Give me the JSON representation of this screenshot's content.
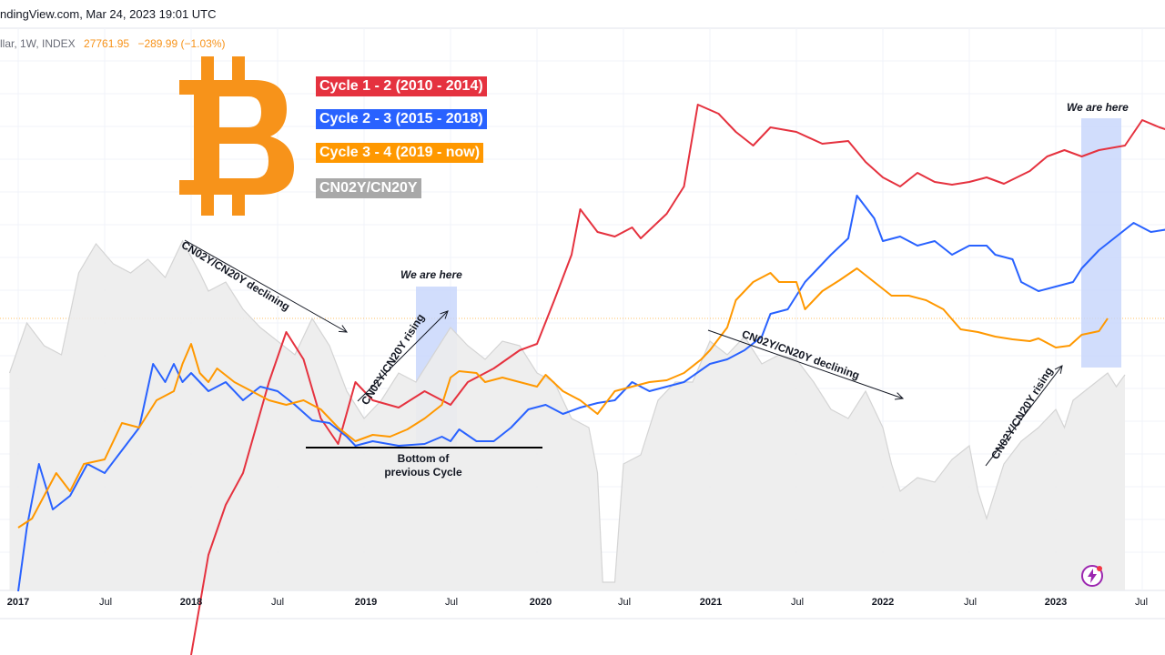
{
  "header": {
    "source": "ndingView.com, Mar 24, 2023 19:01 UTC",
    "symbol": "llar, 1W, INDEX",
    "price": "27761.95",
    "change": "−289.99 (−1.03%)"
  },
  "icons": {
    "logo": "bitcoin-logo-icon",
    "bolt": "lightning-bolt-icon"
  },
  "colors": {
    "cycle1": "#e5323f",
    "cycle2": "#2962ff",
    "cycle3": "#ff9800",
    "yield": "#9e9e9e",
    "bitcoin": "#f7931a",
    "highlight": "#c5d4fb"
  },
  "chart_data": {
    "type": "line",
    "title": "",
    "x": [
      "2017",
      "Jul",
      "2018",
      "Jul",
      "2019",
      "Jul",
      "2020",
      "Jul",
      "2021",
      "Jul",
      "2022",
      "Jul",
      "2023",
      "Jul"
    ],
    "legend": [
      "Cycle 1 - 2 (2010 - 2014)",
      "Cycle 2 - 3 (2015 - 2018)",
      "Cycle 3 - 4 (2019 - now)",
      "CN02Y/CN20Y"
    ],
    "series": [
      {
        "name": "Cycle 1 - 2 (2010 - 2014)",
        "color": "#e5323f",
        "points": [
          [
            2018.0,
            720
          ],
          [
            2018.1,
            610
          ],
          [
            2018.2,
            555
          ],
          [
            2018.3,
            520
          ],
          [
            2018.45,
            420
          ],
          [
            2018.55,
            365
          ],
          [
            2018.65,
            395
          ],
          [
            2018.75,
            460
          ],
          [
            2018.85,
            488
          ],
          [
            2018.95,
            420
          ],
          [
            2019.05,
            440
          ],
          [
            2019.2,
            448
          ],
          [
            2019.35,
            430
          ],
          [
            2019.5,
            445
          ],
          [
            2019.6,
            420
          ],
          [
            2019.75,
            405
          ],
          [
            2019.9,
            385
          ],
          [
            2020.0,
            378
          ],
          [
            2020.1,
            330
          ],
          [
            2020.2,
            280
          ],
          [
            2020.25,
            230
          ],
          [
            2020.35,
            255
          ],
          [
            2020.45,
            260
          ],
          [
            2020.55,
            250
          ],
          [
            2020.6,
            262
          ],
          [
            2020.75,
            235
          ],
          [
            2020.85,
            205
          ],
          [
            2020.93,
            115
          ],
          [
            2021.05,
            125
          ],
          [
            2021.15,
            145
          ],
          [
            2021.25,
            160
          ],
          [
            2021.35,
            140
          ],
          [
            2021.5,
            145
          ],
          [
            2021.65,
            158
          ],
          [
            2021.8,
            155
          ],
          [
            2021.9,
            178
          ],
          [
            2022.0,
            195
          ],
          [
            2022.1,
            205
          ],
          [
            2022.2,
            190
          ],
          [
            2022.3,
            200
          ],
          [
            2022.4,
            203
          ],
          [
            2022.5,
            200
          ],
          [
            2022.6,
            195
          ],
          [
            2022.7,
            202
          ],
          [
            2022.85,
            188
          ],
          [
            2022.95,
            172
          ],
          [
            2023.05,
            165
          ],
          [
            2023.15,
            172
          ],
          [
            2023.25,
            165
          ],
          [
            2023.4,
            160
          ],
          [
            2023.5,
            132
          ],
          [
            2023.6,
            140
          ],
          [
            2023.65,
            143
          ]
        ]
      },
      {
        "name": "Cycle 2 - 3 (2015 - 2018)",
        "color": "#2962ff",
        "points": [
          [
            2017.0,
            650
          ],
          [
            2017.05,
            580
          ],
          [
            2017.12,
            510
          ],
          [
            2017.2,
            560
          ],
          [
            2017.3,
            545
          ],
          [
            2017.4,
            510
          ],
          [
            2017.5,
            520
          ],
          [
            2017.6,
            495
          ],
          [
            2017.7,
            470
          ],
          [
            2017.78,
            400
          ],
          [
            2017.85,
            420
          ],
          [
            2017.9,
            400
          ],
          [
            2017.95,
            420
          ],
          [
            2018.0,
            410
          ],
          [
            2018.1,
            430
          ],
          [
            2018.2,
            420
          ],
          [
            2018.3,
            440
          ],
          [
            2018.4,
            425
          ],
          [
            2018.5,
            430
          ],
          [
            2018.6,
            445
          ],
          [
            2018.7,
            462
          ],
          [
            2018.8,
            465
          ],
          [
            2018.9,
            480
          ],
          [
            2018.95,
            490
          ],
          [
            2019.05,
            485
          ],
          [
            2019.2,
            490
          ],
          [
            2019.35,
            488
          ],
          [
            2019.45,
            480
          ],
          [
            2019.5,
            485
          ],
          [
            2019.55,
            472
          ],
          [
            2019.65,
            485
          ],
          [
            2019.75,
            485
          ],
          [
            2019.85,
            470
          ],
          [
            2019.95,
            450
          ],
          [
            2020.05,
            445
          ],
          [
            2020.15,
            455
          ],
          [
            2020.25,
            448
          ],
          [
            2020.35,
            443
          ],
          [
            2020.45,
            440
          ],
          [
            2020.55,
            420
          ],
          [
            2020.65,
            430
          ],
          [
            2020.75,
            425
          ],
          [
            2020.85,
            420
          ],
          [
            2021.0,
            400
          ],
          [
            2021.1,
            395
          ],
          [
            2021.2,
            385
          ],
          [
            2021.3,
            370
          ],
          [
            2021.35,
            345
          ],
          [
            2021.45,
            340
          ],
          [
            2021.5,
            325
          ],
          [
            2021.55,
            310
          ],
          [
            2021.6,
            300
          ],
          [
            2021.7,
            280
          ],
          [
            2021.8,
            262
          ],
          [
            2021.85,
            215
          ],
          [
            2021.95,
            240
          ],
          [
            2022.0,
            265
          ],
          [
            2022.1,
            260
          ],
          [
            2022.2,
            270
          ],
          [
            2022.3,
            265
          ],
          [
            2022.4,
            280
          ],
          [
            2022.5,
            270
          ],
          [
            2022.6,
            270
          ],
          [
            2022.65,
            280
          ],
          [
            2022.75,
            285
          ],
          [
            2022.8,
            310
          ],
          [
            2022.9,
            320
          ],
          [
            2023.0,
            315
          ],
          [
            2023.1,
            310
          ],
          [
            2023.15,
            295
          ],
          [
            2023.25,
            275
          ],
          [
            2023.35,
            260
          ],
          [
            2023.45,
            245
          ],
          [
            2023.55,
            255
          ],
          [
            2023.65,
            252
          ],
          [
            2023.7,
            262
          ],
          [
            2023.75,
            268
          ]
        ]
      },
      {
        "name": "Cycle 3 - 4 (2019 - now)",
        "color": "#ff9800",
        "points": [
          [
            2017.0,
            580
          ],
          [
            2017.08,
            570
          ],
          [
            2017.15,
            545
          ],
          [
            2017.22,
            520
          ],
          [
            2017.3,
            540
          ],
          [
            2017.38,
            510
          ],
          [
            2017.5,
            505
          ],
          [
            2017.6,
            465
          ],
          [
            2017.7,
            470
          ],
          [
            2017.8,
            440
          ],
          [
            2017.9,
            430
          ],
          [
            2017.95,
            400
          ],
          [
            2018.0,
            378
          ],
          [
            2018.05,
            410
          ],
          [
            2018.1,
            420
          ],
          [
            2018.15,
            405
          ],
          [
            2018.25,
            420
          ],
          [
            2018.35,
            430
          ],
          [
            2018.45,
            440
          ],
          [
            2018.55,
            445
          ],
          [
            2018.65,
            440
          ],
          [
            2018.75,
            450
          ],
          [
            2018.85,
            470
          ],
          [
            2018.95,
            485
          ],
          [
            2019.05,
            478
          ],
          [
            2019.15,
            480
          ],
          [
            2019.25,
            472
          ],
          [
            2019.35,
            460
          ],
          [
            2019.45,
            445
          ],
          [
            2019.5,
            415
          ],
          [
            2019.55,
            408
          ],
          [
            2019.65,
            410
          ],
          [
            2019.7,
            420
          ],
          [
            2019.8,
            415
          ],
          [
            2019.9,
            420
          ],
          [
            2020.0,
            425
          ],
          [
            2020.05,
            412
          ],
          [
            2020.15,
            430
          ],
          [
            2020.25,
            440
          ],
          [
            2020.35,
            455
          ],
          [
            2020.45,
            430
          ],
          [
            2020.55,
            425
          ],
          [
            2020.65,
            420
          ],
          [
            2020.75,
            418
          ],
          [
            2020.85,
            410
          ],
          [
            2020.95,
            395
          ],
          [
            2021.0,
            385
          ],
          [
            2021.1,
            360
          ],
          [
            2021.15,
            330
          ],
          [
            2021.25,
            310
          ],
          [
            2021.35,
            300
          ],
          [
            2021.4,
            310
          ],
          [
            2021.5,
            310
          ],
          [
            2021.55,
            340
          ],
          [
            2021.65,
            320
          ],
          [
            2021.75,
            308
          ],
          [
            2021.85,
            295
          ],
          [
            2021.95,
            310
          ],
          [
            2022.05,
            325
          ],
          [
            2022.15,
            325
          ],
          [
            2022.25,
            330
          ],
          [
            2022.35,
            340
          ],
          [
            2022.45,
            362
          ],
          [
            2022.55,
            365
          ],
          [
            2022.65,
            370
          ],
          [
            2022.75,
            373
          ],
          [
            2022.85,
            375
          ],
          [
            2022.9,
            372
          ],
          [
            2023.0,
            382
          ],
          [
            2023.08,
            380
          ],
          [
            2023.15,
            368
          ],
          [
            2023.25,
            364
          ],
          [
            2023.3,
            350
          ]
        ]
      },
      {
        "name": "CN02Y/CN20Y",
        "color": "#9e9e9e",
        "points": [
          [
            2016.95,
            410
          ],
          [
            2017.05,
            355
          ],
          [
            2017.15,
            380
          ],
          [
            2017.25,
            390
          ],
          [
            2017.35,
            300
          ],
          [
            2017.45,
            268
          ],
          [
            2017.55,
            290
          ],
          [
            2017.65,
            300
          ],
          [
            2017.75,
            285
          ],
          [
            2017.85,
            305
          ],
          [
            2017.95,
            265
          ],
          [
            2018.05,
            300
          ],
          [
            2018.1,
            320
          ],
          [
            2018.2,
            310
          ],
          [
            2018.3,
            340
          ],
          [
            2018.4,
            360
          ],
          [
            2018.5,
            375
          ],
          [
            2018.6,
            390
          ],
          [
            2018.7,
            350
          ],
          [
            2018.8,
            380
          ],
          [
            2018.9,
            430
          ],
          [
            2019.0,
            460
          ],
          [
            2019.1,
            440
          ],
          [
            2019.2,
            410
          ],
          [
            2019.3,
            420
          ],
          [
            2019.4,
            390
          ],
          [
            2019.5,
            360
          ],
          [
            2019.6,
            380
          ],
          [
            2019.7,
            395
          ],
          [
            2019.8,
            375
          ],
          [
            2019.9,
            380
          ],
          [
            2020.0,
            410
          ],
          [
            2020.1,
            420
          ],
          [
            2020.2,
            460
          ],
          [
            2020.3,
            470
          ],
          [
            2020.35,
            520
          ],
          [
            2020.38,
            640
          ],
          [
            2020.45,
            640
          ],
          [
            2020.5,
            510
          ],
          [
            2020.6,
            500
          ],
          [
            2020.7,
            440
          ],
          [
            2020.8,
            420
          ],
          [
            2020.9,
            420
          ],
          [
            2021.0,
            375
          ],
          [
            2021.1,
            390
          ],
          [
            2021.2,
            370
          ],
          [
            2021.3,
            400
          ],
          [
            2021.4,
            390
          ],
          [
            2021.5,
            395
          ],
          [
            2021.6,
            420
          ],
          [
            2021.7,
            450
          ],
          [
            2021.8,
            460
          ],
          [
            2021.9,
            430
          ],
          [
            2022.0,
            470
          ],
          [
            2022.05,
            510
          ],
          [
            2022.1,
            540
          ],
          [
            2022.2,
            525
          ],
          [
            2022.3,
            530
          ],
          [
            2022.4,
            505
          ],
          [
            2022.5,
            490
          ],
          [
            2022.55,
            540
          ],
          [
            2022.6,
            570
          ],
          [
            2022.7,
            510
          ],
          [
            2022.8,
            485
          ],
          [
            2022.9,
            470
          ],
          [
            2023.0,
            450
          ],
          [
            2023.05,
            470
          ],
          [
            2023.1,
            440
          ],
          [
            2023.2,
            425
          ],
          [
            2023.3,
            410
          ],
          [
            2023.35,
            425
          ],
          [
            2023.4,
            412
          ]
        ]
      }
    ],
    "annotations": [
      "CN02Y/CN20Y declining",
      "CN02Y/CN20Y rising",
      "We are here",
      "Bottom of previous Cycle"
    ]
  },
  "notes": {
    "decline1": "CN02Y/CN20Y declining",
    "rise1": "CN02Y/CN20Y rising",
    "here1": "We are here",
    "bottom_line1": "Bottom of",
    "bottom_line2": "previous Cycle",
    "decline2": "CN02Y/CN20Y declining",
    "rise2": "CN02Y/CN20Y rising",
    "here2": "We are here"
  }
}
